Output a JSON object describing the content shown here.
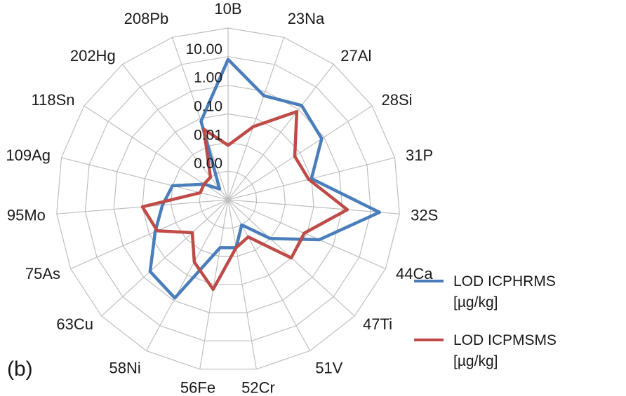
{
  "panel_label": "(b)",
  "chart_data": {
    "type": "radar",
    "scale": "log",
    "categories": [
      "10B",
      "23Na",
      "27Al",
      "28Si",
      "31P",
      "32S",
      "44Ca",
      "47Ti",
      "51V",
      "52Cr",
      "56Fe",
      "58Ni",
      "63Cu",
      "75As",
      "95Mo",
      "109Ag",
      "118Sn",
      "202Hg",
      "208Pb"
    ],
    "tick_labels": [
      "0.00",
      "0.01",
      "0.10",
      "1.00",
      "10.00"
    ],
    "tick_values": [
      0.001,
      0.01,
      0.1,
      1,
      10
    ],
    "rmin": 0.0001,
    "rmax": 100,
    "series": [
      {
        "name": "LOD ICPHRMS [µg/kg]",
        "color": "#4a7ebb",
        "values": [
          8,
          0.7,
          1.5,
          0.8,
          0.1,
          20,
          0.3,
          0.01,
          0.001,
          0.005,
          0.005,
          0.8,
          0.5,
          0.06,
          0.02,
          0.01,
          0.001,
          0.0003,
          0.08
        ]
      },
      {
        "name": "LOD ICPMSMS [µg/kg]",
        "color": "#be4b48",
        "values": [
          0.008,
          0.05,
          0.8,
          0.06,
          0.08,
          1.5,
          0.08,
          0.1,
          0.003,
          0.005,
          0.15,
          0.03,
          0.005,
          0.05,
          0.1,
          0.001,
          0.001,
          0.001,
          0.04
        ]
      }
    ],
    "legend": "right"
  }
}
